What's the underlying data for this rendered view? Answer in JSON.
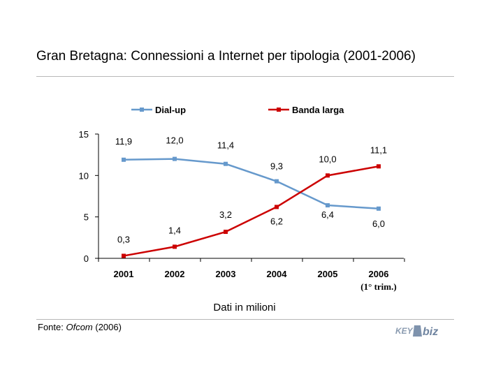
{
  "header": {
    "title": "Gran Bretagna: Connessioni a Internet per tipologia (2001-2006)"
  },
  "footer": {
    "subtitle": "Dati in milioni",
    "source_prefix": "Fonte: ",
    "source_name": "Ofcom",
    "source_suffix": " (2006)",
    "logo_text": "KEY4biz"
  },
  "colors": {
    "dialup": "#6699cc",
    "broadband": "#cc0000",
    "rule": "#b8b8b8"
  },
  "chart_data": {
    "type": "line",
    "title": "",
    "xlabel": "",
    "ylabel": "",
    "categories": [
      "2001",
      "2002",
      "2003",
      "2004",
      "2005",
      "2006"
    ],
    "category_sublabels": [
      "",
      "",
      "",
      "",
      "",
      "(1° trim.)"
    ],
    "ylim": [
      0,
      15
    ],
    "yticks": [
      "0",
      "5",
      "10",
      "15"
    ],
    "grid": false,
    "legend_position": "top",
    "series": [
      {
        "name": "Dial-up",
        "values": [
          11.9,
          12.0,
          11.4,
          9.3,
          6.4,
          6.0
        ],
        "labels": [
          "11,9",
          "12,0",
          "11,4",
          "9,3",
          "6,4",
          "6,0"
        ],
        "color": "#6699cc"
      },
      {
        "name": "Banda larga",
        "values": [
          0.3,
          1.4,
          3.2,
          6.2,
          10.0,
          11.1
        ],
        "labels": [
          "0,3",
          "1,4",
          "3,2",
          "6,2",
          "10,0",
          "11,1"
        ],
        "color": "#cc0000"
      }
    ]
  }
}
